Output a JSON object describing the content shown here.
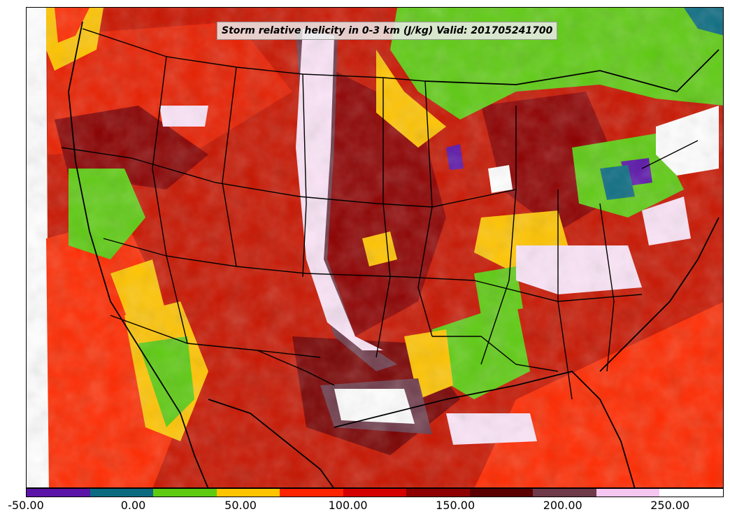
{
  "title": "Storm relative helicity in 0-3 km (J/kg) Valid: 201705241700",
  "colorbar": {
    "colors": [
      "#5b14a8",
      "#0a6b80",
      "#5ecb12",
      "#ffc400",
      "#ff2400",
      "#d40000",
      "#8e0000",
      "#5a0000",
      "#6e3a4a",
      "#f5c6f0",
      "#ffffff"
    ],
    "tick_labels": [
      "-50.00",
      "0.00",
      "50.00",
      "100.00",
      "150.00",
      "200.00",
      "250.00"
    ],
    "range": [
      -50,
      275
    ]
  },
  "legend_colors": {
    "land_base": "#c21400",
    "border": "#000000"
  }
}
